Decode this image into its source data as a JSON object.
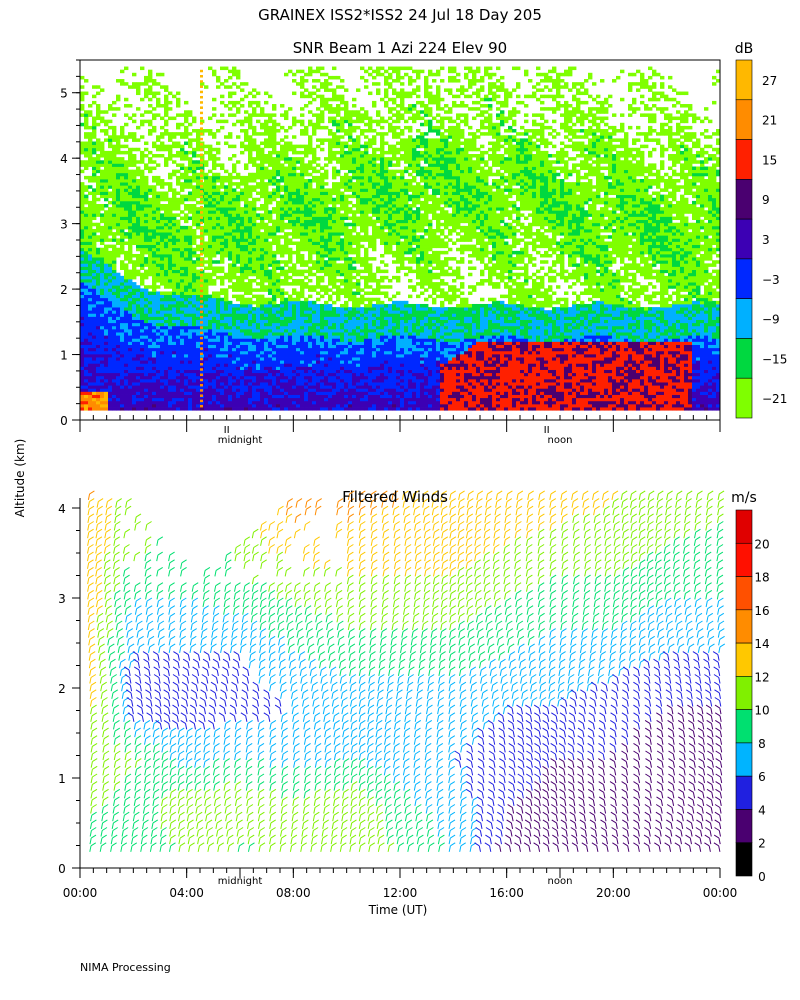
{
  "header": {
    "title": "GRAINEX ISS2*ISS2  24 Jul 18 Day 205",
    "subtitle": "SNR Beam 1 Azi 224 Elev 90"
  },
  "footer": {
    "credit": "NIMA Processing"
  },
  "chart_data": [
    {
      "type": "heatmap",
      "title": "SNR Beam 1 Azi 224 Elev 90",
      "ylabel": "Altitude (km)",
      "ylim": [
        0,
        5.5
      ],
      "yticks": [
        "0",
        "1",
        "2",
        "3",
        "4",
        "5"
      ],
      "xlim_hours": [
        0,
        24
      ],
      "markers": [
        {
          "label": "midnight",
          "hour": 5.5
        },
        {
          "label": "noon",
          "hour": 17.5
        }
      ],
      "colorbar": {
        "unit": "dB",
        "ticks": [
          "27",
          "21",
          "15",
          "9",
          "3",
          "−3",
          "−9",
          "−15",
          "−21"
        ],
        "bands": [
          {
            "min": -24,
            "max": -18,
            "color": "#7fff00"
          },
          {
            "min": -18,
            "max": -12,
            "color": "#00d840"
          },
          {
            "min": -12,
            "max": -6,
            "color": "#00b0ff"
          },
          {
            "min": -6,
            "max": 0,
            "color": "#0028ff"
          },
          {
            "min": 0,
            "max": 6,
            "color": "#3c00b4"
          },
          {
            "min": 6,
            "max": 12,
            "color": "#4a0070"
          },
          {
            "min": 12,
            "max": 18,
            "color": "#ff2000"
          },
          {
            "min": 18,
            "max": 24,
            "color": "#ff8c00"
          },
          {
            "min": 24,
            "max": 30,
            "color": "#ffb800"
          }
        ]
      },
      "layers": [
        {
          "desc": "strong echo near surface",
          "alt_km": [
            0.15,
            1.3
          ],
          "snr_db": 3
        },
        {
          "desc": "boundary layer top",
          "alt_km": [
            1.3,
            1.7
          ],
          "snr_db": -9
        },
        {
          "desc": "mid-level returns",
          "alt_km": [
            1.7,
            3.5
          ],
          "snr_db": -21
        },
        {
          "desc": "afternoon strong echo",
          "alt_km": [
            0.15,
            1.2
          ],
          "snr_db": 12
        }
      ]
    },
    {
      "type": "scatter",
      "title": "Filtered Winds",
      "xlabel": "Time (UT)",
      "ylabel": "Altitude (km)",
      "xticks": [
        "00:00",
        "04:00",
        "08:00",
        "12:00",
        "16:00",
        "20:00",
        "00:00"
      ],
      "xlim_hours": [
        0,
        24
      ],
      "ylim": [
        0,
        4.2
      ],
      "yticks": [
        "0",
        "1",
        "2",
        "3",
        "4"
      ],
      "markers": [
        {
          "label": "midnight",
          "hour": 6
        },
        {
          "label": "noon",
          "hour": 18
        }
      ],
      "colorbar": {
        "unit": "m/s",
        "ticks": [
          "20",
          "18",
          "16",
          "14",
          "12",
          "10",
          "8",
          "6",
          "4",
          "2",
          "0"
        ],
        "bands": [
          {
            "min": 0,
            "max": 2,
            "color": "#000000"
          },
          {
            "min": 2,
            "max": 4,
            "color": "#4a0070"
          },
          {
            "min": 4,
            "max": 6,
            "color": "#2020e0"
          },
          {
            "min": 6,
            "max": 8,
            "color": "#00b4ff"
          },
          {
            "min": 8,
            "max": 10,
            "color": "#00e070"
          },
          {
            "min": 10,
            "max": 12,
            "color": "#80f000"
          },
          {
            "min": 12,
            "max": 14,
            "color": "#ffc800"
          },
          {
            "min": 14,
            "max": 16,
            "color": "#ff8c00"
          },
          {
            "min": 16,
            "max": 18,
            "color": "#ff5000"
          },
          {
            "min": 18,
            "max": 20,
            "color": "#ff1000"
          },
          {
            "min": 20,
            "max": 22,
            "color": "#e00000"
          }
        ]
      },
      "wind_profiles": [
        {
          "hour": 0.5,
          "top_km": 4.1,
          "speeds_ms": [
            9,
            10,
            11,
            12,
            12,
            13,
            13,
            14
          ]
        },
        {
          "hour": 2.0,
          "top_km": 4.0,
          "speeds_ms": [
            8,
            9,
            10,
            4,
            6,
            8,
            11,
            10
          ]
        },
        {
          "hour": 4.0,
          "top_km": 3.3,
          "speeds_ms": [
            10,
            12,
            7,
            5,
            6,
            8,
            9,
            9
          ]
        },
        {
          "hour": 6.0,
          "top_km": 3.6,
          "speeds_ms": [
            9,
            12,
            8,
            5,
            6,
            9,
            11,
            12
          ]
        },
        {
          "hour": 8.0,
          "top_km": 4.1,
          "speeds_ms": [
            10,
            11,
            7,
            6,
            8,
            10,
            13,
            15
          ]
        },
        {
          "hour": 10.0,
          "top_km": 4.1,
          "speeds_ms": [
            11,
            12,
            8,
            7,
            9,
            11,
            13,
            15
          ]
        },
        {
          "hour": 12.0,
          "top_km": 4.1,
          "speeds_ms": [
            10,
            9,
            7,
            7,
            9,
            11,
            13,
            14
          ]
        },
        {
          "hour": 14.0,
          "top_km": 4.1,
          "speeds_ms": [
            8,
            7,
            6,
            7,
            9,
            11,
            13,
            14
          ]
        },
        {
          "hour": 16.0,
          "top_km": 4.1,
          "speeds_ms": [
            3,
            4,
            5,
            6,
            8,
            10,
            12,
            14
          ]
        },
        {
          "hour": 18.0,
          "top_km": 4.1,
          "speeds_ms": [
            3,
            3,
            4,
            6,
            7,
            9,
            11,
            13
          ]
        },
        {
          "hour": 20.0,
          "top_km": 4.1,
          "speeds_ms": [
            3,
            3,
            4,
            5,
            7,
            9,
            11,
            12
          ]
        },
        {
          "hour": 22.0,
          "top_km": 4.1,
          "speeds_ms": [
            3,
            3,
            3,
            4,
            6,
            8,
            10,
            12
          ]
        },
        {
          "hour": 24.0,
          "top_km": 4.1,
          "speeds_ms": [
            3,
            3,
            3,
            4,
            6,
            8,
            9,
            11
          ]
        }
      ]
    }
  ]
}
